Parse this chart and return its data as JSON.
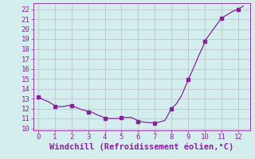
{
  "x": [
    0,
    0.3,
    0.6,
    0.9,
    1.0,
    1.3,
    1.5,
    1.8,
    2.0,
    2.3,
    2.6,
    2.9,
    3.2,
    3.5,
    3.8,
    4.0,
    4.3,
    4.6,
    4.9,
    5.0,
    5.3,
    5.6,
    5.9,
    6.0,
    6.3,
    6.5,
    6.7,
    7.0,
    7.3,
    7.6,
    8.0,
    8.3,
    8.6,
    9.0,
    9.3,
    9.6,
    9.9,
    10.0,
    10.3,
    10.6,
    11.0,
    11.2,
    11.5,
    11.7,
    12.0,
    12.3
  ],
  "y": [
    13.2,
    12.9,
    12.7,
    12.4,
    12.2,
    12.2,
    12.2,
    12.3,
    12.3,
    12.1,
    11.9,
    11.75,
    11.65,
    11.4,
    11.2,
    11.05,
    11.0,
    11.0,
    11.0,
    11.1,
    11.1,
    11.1,
    10.85,
    10.7,
    10.65,
    10.6,
    10.58,
    10.55,
    10.65,
    10.8,
    12.0,
    12.5,
    13.3,
    14.9,
    16.0,
    17.2,
    18.3,
    18.8,
    19.5,
    20.2,
    21.1,
    21.3,
    21.6,
    21.8,
    22.0,
    22.3
  ],
  "markers_x": [
    0,
    1,
    2,
    3,
    4,
    5,
    6,
    7,
    8,
    9,
    10,
    11,
    12
  ],
  "markers_y": [
    13.2,
    12.2,
    12.3,
    11.65,
    11.0,
    11.1,
    10.7,
    10.55,
    12.0,
    14.9,
    18.8,
    21.1,
    22.0
  ],
  "line_color": "#882299",
  "marker_color": "#882299",
  "bg_color": "#D4EEEE",
  "grid_color": "#BBBBCC",
  "plot_area_color": "#D4EEEE",
  "xlabel": "Windchill (Refroidissement éolien,°C)",
  "xlim": [
    -0.3,
    12.7
  ],
  "ylim": [
    9.8,
    22.6
  ],
  "xticks": [
    0,
    1,
    2,
    3,
    4,
    5,
    6,
    7,
    8,
    9,
    10,
    11,
    12
  ],
  "yticks": [
    10,
    11,
    12,
    13,
    14,
    15,
    16,
    17,
    18,
    19,
    20,
    21,
    22
  ],
  "tick_color": "#882299",
  "label_color": "#882299",
  "tick_fontsize": 6.5,
  "xlabel_fontsize": 7.5
}
